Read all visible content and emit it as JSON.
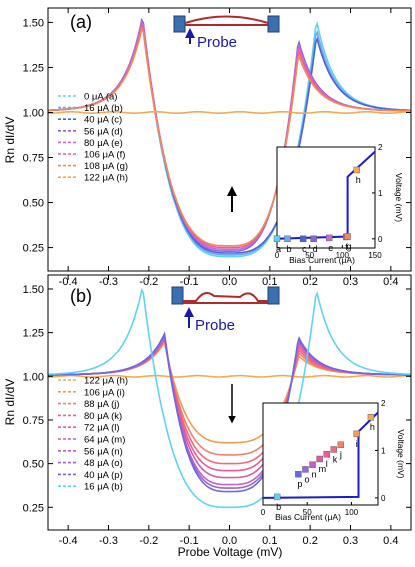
{
  "xlabel": "Probe Voltage (mV)",
  "chart_data": [
    {
      "type": "line",
      "panel_label": "(a)",
      "ylabel": "Rn dI/dV",
      "xlim": [
        -0.45,
        0.45
      ],
      "ylim": [
        0.12,
        1.58
      ],
      "xticks": [
        -0.4,
        -0.3,
        -0.2,
        -0.1,
        0.0,
        0.1,
        0.2,
        0.3,
        0.4
      ],
      "yticks": [
        0.25,
        0.5,
        0.75,
        1.0,
        1.25,
        1.5
      ],
      "xticklabels": [
        "-0.4",
        "-0.3",
        "-0.2",
        "-0.1",
        "0.0",
        "0.1",
        "0.2",
        "0.3",
        "0.4"
      ],
      "yticklabels": [
        "0.25",
        "0.50",
        "0.75",
        "1.00",
        "1.25",
        "1.50"
      ],
      "legend_position": "left",
      "probe_label": "Probe",
      "series": [
        {
          "name": "0 μA (a)",
          "color": "#5fd3f3",
          "peak_left": 1.5,
          "peak_right": 1.5,
          "min": 0.2
        },
        {
          "name": "16 μA (b)",
          "color": "#6fa8ee",
          "peak_left": 1.51,
          "peak_right": 1.45,
          "min": 0.21
        },
        {
          "name": "40 μA (c)",
          "color": "#4b62d8",
          "peak_left": 1.52,
          "peak_right": 1.41,
          "min": 0.22
        },
        {
          "name": "56 μA (d)",
          "color": "#8a63d6",
          "peak_left": 1.52,
          "peak_right": 1.39,
          "min": 0.23
        },
        {
          "name": "80 μA (e)",
          "color": "#c46ad8",
          "peak_left": 1.51,
          "peak_right": 1.37,
          "min": 0.24
        },
        {
          "name": "106 μA (f)",
          "color": "#f25a9a",
          "peak_left": 1.49,
          "peak_right": 1.34,
          "min": 0.25
        },
        {
          "name": "108 μA (g)",
          "color": "#f08a5a",
          "peak_left": 1.47,
          "peak_right": 1.31,
          "min": 0.26
        },
        {
          "name": "122 μA (h)",
          "color": "#f2aa55",
          "peak_left": 1.0,
          "peak_right": 1.0,
          "min": 1.0
        }
      ],
      "inset": {
        "xlabel": "Bias Current (μA)",
        "ylabel": "Voltage (mV)",
        "xlim": [
          0,
          150
        ],
        "ylim": [
          -0.2,
          2
        ],
        "xticks": [
          0,
          50,
          100,
          150
        ],
        "yticks": [
          0,
          1,
          2
        ],
        "xticklabels": [
          "0",
          "50",
          "100",
          "150"
        ],
        "yticklabels": [
          "0",
          "1",
          "2"
        ],
        "iv_up": [
          [
            0,
            0
          ],
          [
            108,
            0.05
          ],
          [
            108,
            1.35
          ],
          [
            150,
            1.9
          ]
        ],
        "points": [
          {
            "label": "a",
            "x": 0,
            "y": 0,
            "color": "#5fd3f3"
          },
          {
            "label": "b",
            "x": 16,
            "y": 0,
            "color": "#6fa8ee"
          },
          {
            "label": "c",
            "x": 40,
            "y": 0,
            "color": "#4b62d8"
          },
          {
            "label": "d",
            "x": 56,
            "y": 0,
            "color": "#8a63d6"
          },
          {
            "label": "e",
            "x": 80,
            "y": 0.02,
            "color": "#c46ad8"
          },
          {
            "label": "f",
            "x": 106,
            "y": 0.04,
            "color": "#f25a9a"
          },
          {
            "label": "g",
            "x": 108,
            "y": 0.05,
            "color": "#f08a5a"
          },
          {
            "label": "h",
            "x": 122,
            "y": 1.5,
            "color": "#f2aa55"
          }
        ]
      }
    },
    {
      "type": "line",
      "panel_label": "(b)",
      "ylabel": "Rn dI/dV",
      "xlim": [
        -0.45,
        0.45
      ],
      "ylim": [
        0.12,
        1.58
      ],
      "xticks": [
        -0.4,
        -0.3,
        -0.2,
        -0.1,
        0.0,
        0.1,
        0.2,
        0.3,
        0.4
      ],
      "yticks": [
        0.25,
        0.5,
        0.75,
        1.0,
        1.25,
        1.5
      ],
      "xticklabels": [
        "-0.4",
        "-0.3",
        "-0.2",
        "-0.1",
        "0.0",
        "0.1",
        "0.2",
        "0.3",
        "0.4"
      ],
      "yticklabels": [
        "0.25",
        "0.50",
        "0.75",
        "1.00",
        "1.25",
        "1.50"
      ],
      "legend_position": "left",
      "probe_label": "Probe",
      "series": [
        {
          "name": "122 μA (h)",
          "color": "#f2aa55",
          "peak_left": 1.0,
          "peak_right": 1.0,
          "min": 1.0
        },
        {
          "name": "106 μA (i)",
          "color": "#f39a58",
          "peak_left": 1.18,
          "peak_right": 1.1,
          "min": 0.62
        },
        {
          "name": "88 μA (j)",
          "color": "#f08070",
          "peak_left": 1.19,
          "peak_right": 1.12,
          "min": 0.55
        },
        {
          "name": "80 μA (k)",
          "color": "#ee6a78",
          "peak_left": 1.2,
          "peak_right": 1.14,
          "min": 0.5
        },
        {
          "name": "72 μA (l)",
          "color": "#f05a90",
          "peak_left": 1.2,
          "peak_right": 1.16,
          "min": 0.46
        },
        {
          "name": "64 μA (m)",
          "color": "#d85ca8",
          "peak_left": 1.21,
          "peak_right": 1.18,
          "min": 0.42
        },
        {
          "name": "56 μA (n)",
          "color": "#c060c8",
          "peak_left": 1.21,
          "peak_right": 1.19,
          "min": 0.38
        },
        {
          "name": "48 μA (o)",
          "color": "#9a64d8",
          "peak_left": 1.22,
          "peak_right": 1.2,
          "min": 0.36
        },
        {
          "name": "40 μA (p)",
          "color": "#6e68e0",
          "peak_left": 1.23,
          "peak_right": 1.21,
          "min": 0.34
        },
        {
          "name": "16 μA (b)",
          "color": "#5fd3f3",
          "peak_left": 1.5,
          "peak_right": 1.48,
          "min": 0.25
        }
      ],
      "inset": {
        "xlabel": "Bias Current (μA)",
        "ylabel": "Voltage (mV)",
        "xlim": [
          0,
          130
        ],
        "ylim": [
          -0.15,
          2
        ],
        "xticks": [
          0,
          50,
          100
        ],
        "yticks": [
          0,
          1,
          2
        ],
        "xticklabels": [
          "0",
          "50",
          "100"
        ],
        "yticklabels": [
          "0",
          "1",
          "2"
        ],
        "iv_up": [
          [
            0,
            0
          ],
          [
            108,
            0.02
          ],
          [
            108,
            1.4
          ],
          [
            130,
            1.8
          ]
        ],
        "points": [
          {
            "label": "b",
            "x": 16,
            "y": 0.02,
            "color": "#5fd3f3"
          },
          {
            "label": "p",
            "x": 40,
            "y": 0.5,
            "color": "#6e68e0"
          },
          {
            "label": "o",
            "x": 48,
            "y": 0.6,
            "color": "#9a64d8"
          },
          {
            "label": "n",
            "x": 56,
            "y": 0.7,
            "color": "#c060c8"
          },
          {
            "label": "m",
            "x": 64,
            "y": 0.82,
            "color": "#d85ca8"
          },
          {
            "label": "l",
            "x": 72,
            "y": 0.92,
            "color": "#f05a90"
          },
          {
            "label": "k",
            "x": 80,
            "y": 1.02,
            "color": "#ee6a78"
          },
          {
            "label": "j",
            "x": 88,
            "y": 1.12,
            "color": "#f08070"
          },
          {
            "label": "i",
            "x": 106,
            "y": 1.35,
            "color": "#f39a58"
          },
          {
            "label": "h",
            "x": 122,
            "y": 1.7,
            "color": "#f2aa55"
          }
        ]
      }
    }
  ]
}
